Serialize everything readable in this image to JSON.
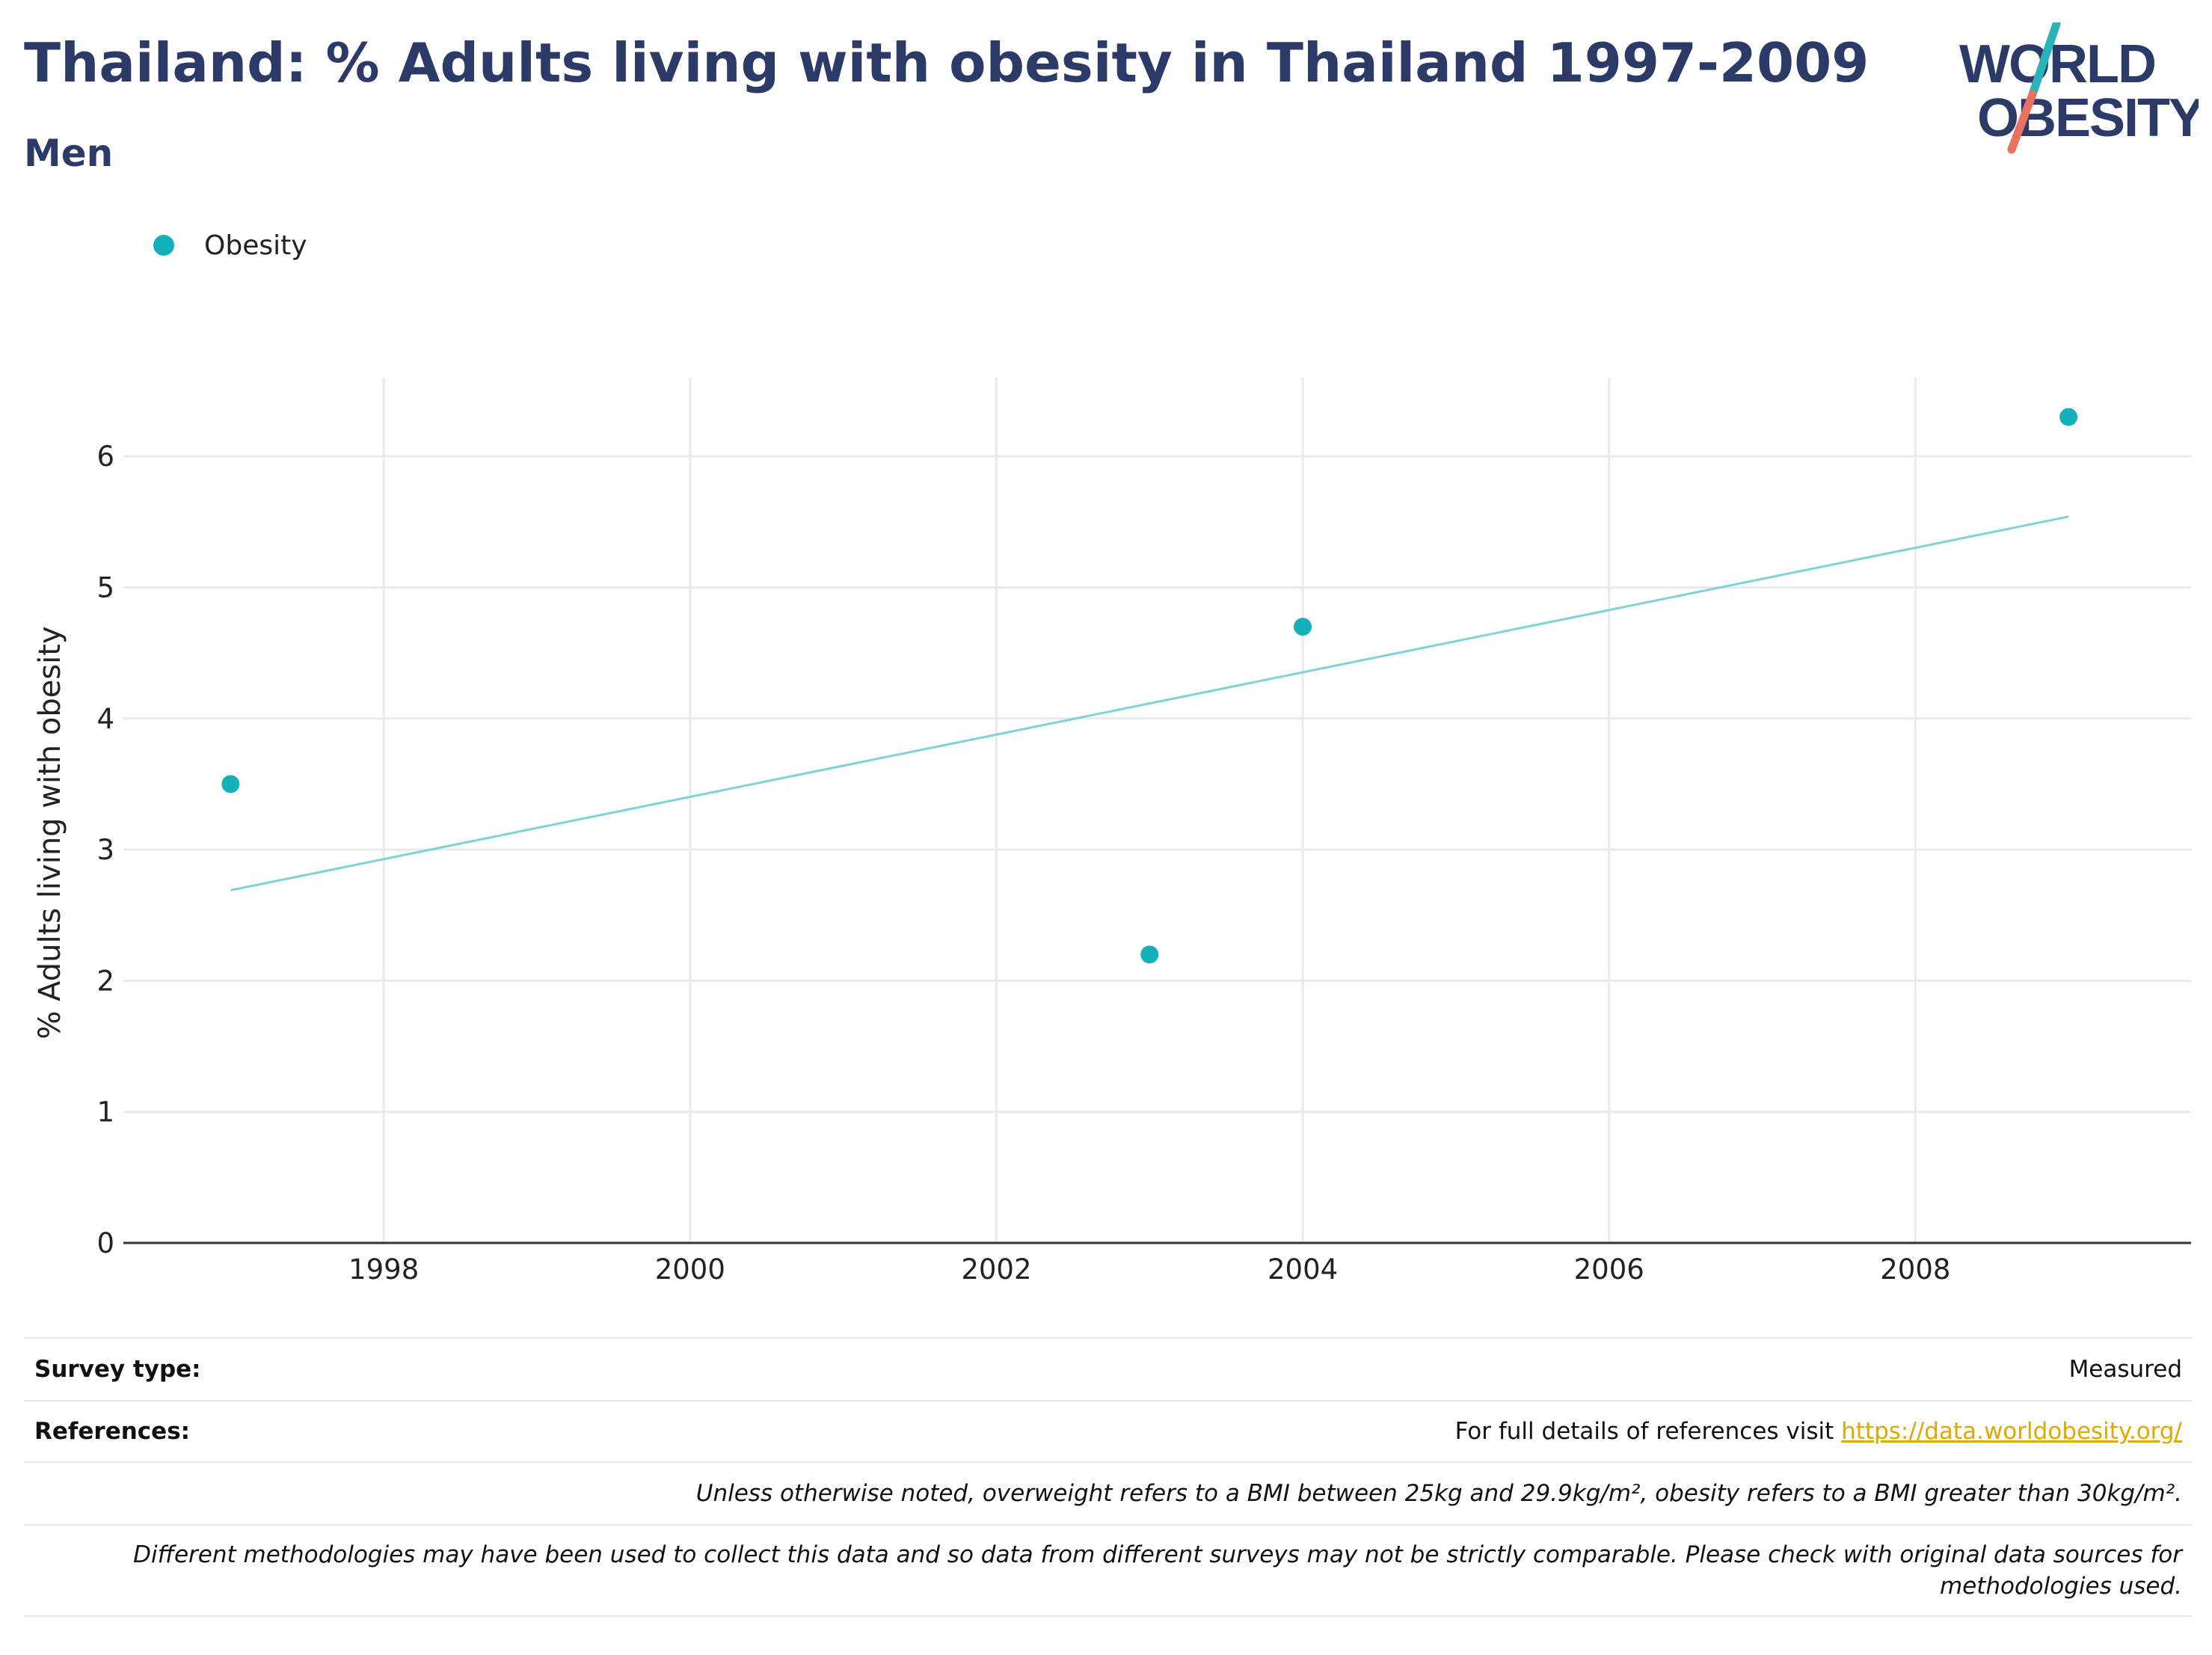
{
  "header": {
    "title": "Thailand: % Adults living with obesity in Thailand 1997-2009",
    "subtitle": "Men"
  },
  "logo": {
    "line1": "WORLD",
    "line2": "OBESITY",
    "text_color": "#2b3a67",
    "slash_top_color": "#2ab3b8",
    "slash_bottom_color": "#e8715f"
  },
  "legend": {
    "label": "Obesity"
  },
  "colors": {
    "marker": "#14b1bb",
    "trend": "#7fd3d8",
    "grid": "#e8eaee",
    "axis": "#333333",
    "title": "#2b3a67",
    "link": "#e0a800"
  },
  "chart_data": {
    "type": "scatter",
    "title": "Thailand: % Adults living with obesity in Thailand 1997-2009",
    "subtitle": "Men",
    "xlabel": "",
    "ylabel": "% Adults living with obesity",
    "xlim": [
      1996.3,
      2009.8
    ],
    "ylim": [
      0,
      6.6
    ],
    "x_ticks": [
      1998,
      2000,
      2002,
      2004,
      2006,
      2008
    ],
    "y_ticks": [
      0,
      1,
      2,
      3,
      4,
      5,
      6
    ],
    "grid": true,
    "legend_position": "top-left",
    "series": [
      {
        "name": "Obesity",
        "points": [
          {
            "x": 1997,
            "y": 3.5
          },
          {
            "x": 2003,
            "y": 2.2
          },
          {
            "x": 2004,
            "y": 4.7
          },
          {
            "x": 2009,
            "y": 6.3
          }
        ]
      }
    ],
    "trendline": {
      "x": [
        1997,
        2009
      ],
      "y": [
        2.69,
        5.54
      ]
    }
  },
  "footer": {
    "survey_label": "Survey type:",
    "survey_value": "Measured",
    "references_label": "References:",
    "references_text": "For full details of references visit ",
    "references_link": "https://data.worldobesity.org/",
    "note_bmi": "Unless otherwise noted, overweight refers to a BMI between 25kg and 29.9kg/m², obesity refers to a BMI greater than 30kg/m².",
    "note_methods_line1": "Different methodologies may have been used to collect this data and so data from different surveys may not be strictly comparable. Please check with original data sources for",
    "note_methods_line2": "methodologies used."
  }
}
